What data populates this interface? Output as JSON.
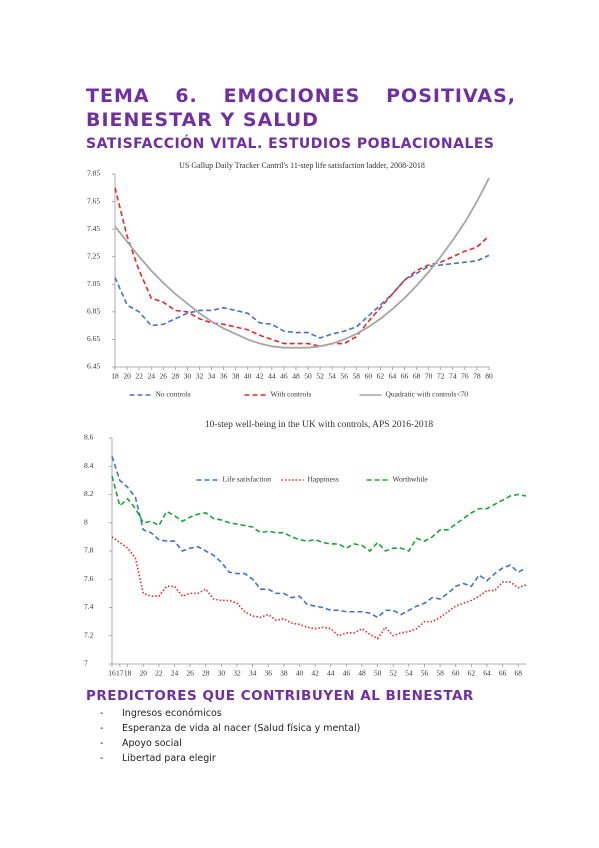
{
  "title": "TEMA 6. EMOCIONES POSITIVAS, BIENESTAR Y SALUD",
  "subtitle": "SATISFACCIÓN VITAL. ESTUDIOS POBLACIONALES",
  "chart_data": [
    {
      "type": "line",
      "title": "US Gallup Daily Tracker Cantril's 11-step life satisfaction ladder, 2008-2018",
      "x": [
        18,
        20,
        22,
        24,
        26,
        28,
        30,
        32,
        34,
        36,
        38,
        40,
        42,
        44,
        46,
        48,
        50,
        52,
        54,
        56,
        58,
        60,
        62,
        64,
        66,
        68,
        70,
        72,
        74,
        76,
        78,
        80
      ],
      "xlim": [
        18,
        80
      ],
      "xticks": [
        18,
        20,
        22,
        24,
        26,
        28,
        30,
        32,
        34,
        36,
        38,
        40,
        42,
        44,
        46,
        48,
        50,
        52,
        54,
        56,
        58,
        60,
        62,
        64,
        66,
        68,
        70,
        72,
        74,
        76,
        78,
        80
      ],
      "ylim": [
        6.45,
        7.85
      ],
      "yticks": [
        6.45,
        6.65,
        6.85,
        7.05,
        7.25,
        7.45,
        7.65,
        7.85
      ],
      "legend": "bottom",
      "series": [
        {
          "name": "No controls",
          "color": "#4472c4",
          "line_style": "dashed",
          "values": [
            7.1,
            6.9,
            6.85,
            6.75,
            6.76,
            6.8,
            6.84,
            6.86,
            6.86,
            6.88,
            6.86,
            6.84,
            6.77,
            6.76,
            6.71,
            6.7,
            6.7,
            6.66,
            6.69,
            6.71,
            6.74,
            6.82,
            6.9,
            6.98,
            7.08,
            7.13,
            7.18,
            7.19,
            7.2,
            7.21,
            7.22,
            7.26
          ]
        },
        {
          "name": "With controls",
          "color": "#e8262a",
          "line_style": "dashed",
          "values": [
            7.75,
            7.4,
            7.15,
            6.95,
            6.92,
            6.86,
            6.85,
            6.8,
            6.77,
            6.76,
            6.74,
            6.72,
            6.68,
            6.65,
            6.62,
            6.62,
            6.62,
            6.6,
            6.62,
            6.62,
            6.67,
            6.78,
            6.88,
            6.98,
            7.08,
            7.15,
            7.19,
            7.21,
            7.25,
            7.29,
            7.32,
            7.4
          ]
        },
        {
          "name": "Quadratic with controls<70",
          "color": "#a6a6a6",
          "line_style": "solid",
          "values": [
            7.47,
            7.36,
            7.25,
            7.15,
            7.06,
            6.98,
            6.91,
            6.84,
            6.78,
            6.73,
            6.69,
            6.65,
            6.62,
            6.6,
            6.59,
            6.59,
            6.59,
            6.6,
            6.62,
            6.65,
            6.69,
            6.74,
            6.8,
            6.87,
            6.95,
            7.04,
            7.14,
            7.25,
            7.37,
            7.5,
            7.65,
            7.82
          ]
        }
      ]
    },
    {
      "type": "line",
      "title": "10-step well-being in the UK with controls, APS 2016-2018",
      "x": [
        16,
        17,
        18,
        19,
        20,
        21,
        22,
        23,
        24,
        25,
        26,
        27,
        28,
        29,
        30,
        31,
        32,
        33,
        34,
        35,
        36,
        37,
        38,
        39,
        40,
        41,
        42,
        43,
        44,
        45,
        46,
        47,
        48,
        49,
        50,
        51,
        52,
        53,
        54,
        55,
        56,
        57,
        58,
        59,
        60,
        61,
        62,
        63,
        64,
        65,
        66,
        67,
        68,
        69
      ],
      "xlim": [
        16,
        69
      ],
      "xticks": [
        16,
        17,
        18,
        20,
        22,
        24,
        26,
        28,
        30,
        32,
        34,
        36,
        38,
        40,
        42,
        44,
        46,
        48,
        50,
        52,
        54,
        56,
        58,
        60,
        62,
        64,
        66,
        68
      ],
      "ylim": [
        7,
        8.6
      ],
      "yticks": [
        7,
        7.2,
        7.4,
        7.6,
        7.8,
        8,
        8.2,
        8.4,
        8.6
      ],
      "legend": "top",
      "series": [
        {
          "name": "Life satisfaction",
          "color": "#4472c4",
          "line_style": "dashed",
          "values": [
            8.47,
            8.3,
            8.25,
            8.18,
            7.95,
            7.93,
            7.88,
            7.87,
            7.87,
            7.8,
            7.82,
            7.83,
            7.8,
            7.77,
            7.72,
            7.65,
            7.64,
            7.64,
            7.6,
            7.53,
            7.53,
            7.5,
            7.5,
            7.47,
            7.48,
            7.42,
            7.41,
            7.4,
            7.38,
            7.38,
            7.37,
            7.37,
            7.37,
            7.36,
            7.33,
            7.38,
            7.38,
            7.35,
            7.38,
            7.41,
            7.43,
            7.47,
            7.46,
            7.5,
            7.55,
            7.57,
            7.55,
            7.63,
            7.59,
            7.64,
            7.68,
            7.7,
            7.65,
            7.68
          ]
        },
        {
          "name": "Happiness",
          "color": "#e8262a",
          "line_style": "dotted",
          "values": [
            7.9,
            7.86,
            7.82,
            7.75,
            7.5,
            7.48,
            7.48,
            7.55,
            7.55,
            7.48,
            7.5,
            7.5,
            7.53,
            7.46,
            7.45,
            7.45,
            7.43,
            7.37,
            7.34,
            7.33,
            7.35,
            7.31,
            7.32,
            7.29,
            7.28,
            7.26,
            7.25,
            7.26,
            7.25,
            7.2,
            7.22,
            7.22,
            7.25,
            7.21,
            7.18,
            7.26,
            7.2,
            7.22,
            7.23,
            7.25,
            7.3,
            7.3,
            7.33,
            7.37,
            7.41,
            7.43,
            7.45,
            7.48,
            7.52,
            7.52,
            7.58,
            7.58,
            7.54,
            7.56
          ]
        },
        {
          "name": "Worthwhile",
          "color": "#1fa33a",
          "line_style": "dashed",
          "values": [
            8.33,
            8.12,
            8.17,
            8.1,
            8.0,
            8.01,
            7.98,
            8.08,
            8.05,
            8.01,
            8.04,
            8.06,
            8.07,
            8.03,
            8.02,
            8.0,
            7.99,
            7.98,
            7.97,
            7.93,
            7.94,
            7.93,
            7.93,
            7.9,
            7.88,
            7.87,
            7.88,
            7.86,
            7.85,
            7.85,
            7.82,
            7.85,
            7.84,
            7.8,
            7.86,
            7.8,
            7.82,
            7.82,
            7.8,
            7.89,
            7.87,
            7.9,
            7.95,
            7.95,
            7.99,
            8.03,
            8.07,
            8.1,
            8.1,
            8.13,
            8.16,
            8.19,
            8.2,
            8.19
          ]
        }
      ]
    }
  ],
  "section": {
    "heading": "PREDICTORES QUE CONTRIBUYEN AL BIENESTAR",
    "items": [
      "Ingresos económicos",
      "Esperanza de vida al nacer (Salud física y mental)",
      "Apoyo social",
      "Libertad para elegir"
    ]
  }
}
